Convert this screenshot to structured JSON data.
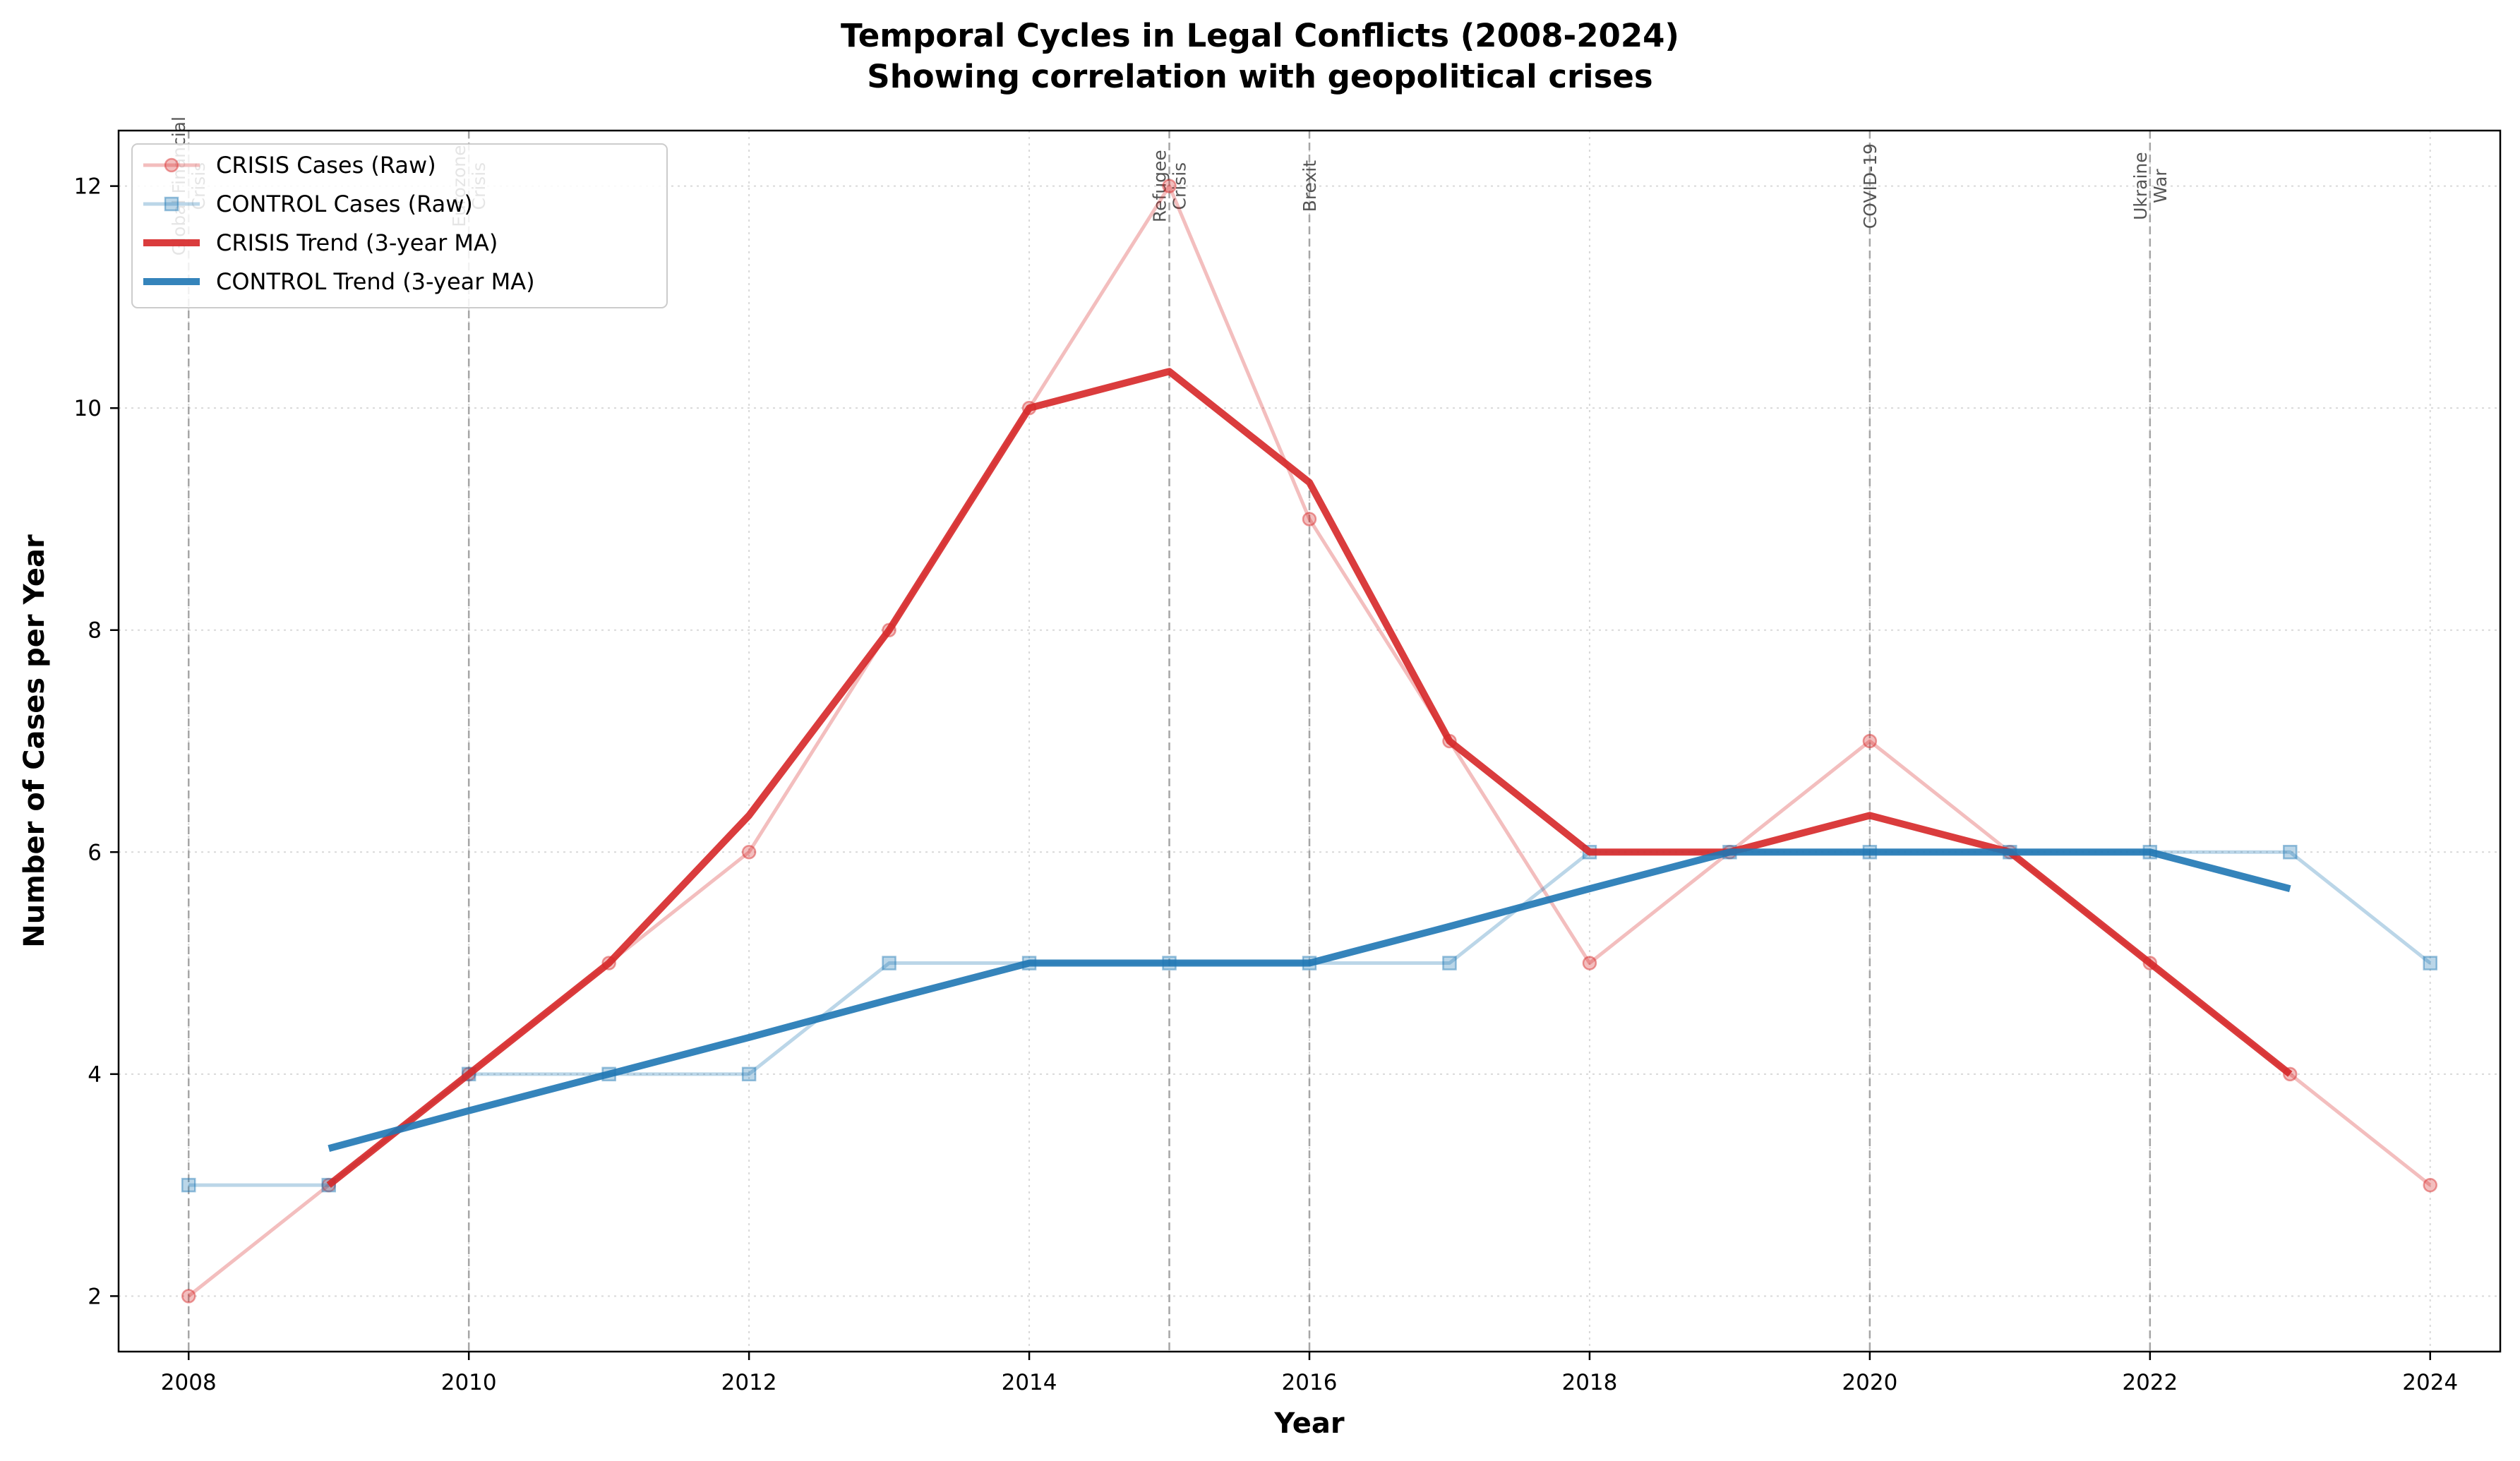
{
  "chart_data": {
    "type": "line",
    "title": "Temporal Cycles in Legal Conflicts (2008-2024)",
    "subtitle": "Showing correlation with geopolitical crises",
    "xlabel": "Year",
    "ylabel": "Number of Cases per Year",
    "xlim": [
      2007.5,
      2024.5
    ],
    "ylim": [
      1.5,
      12.5
    ],
    "x_ticks": [
      2008,
      2010,
      2012,
      2014,
      2016,
      2018,
      2020,
      2022,
      2024
    ],
    "y_ticks": [
      2,
      4,
      6,
      8,
      10,
      12
    ],
    "grid": true,
    "legend_position": "top-left",
    "series": [
      {
        "name": "CRISIS Cases (Raw)",
        "style": "raw",
        "marker": "circle",
        "color": "#d62728",
        "x": [
          2008,
          2009,
          2010,
          2011,
          2012,
          2013,
          2014,
          2015,
          2016,
          2017,
          2018,
          2019,
          2020,
          2021,
          2022,
          2023,
          2024
        ],
        "values": [
          2,
          3,
          4,
          5,
          6,
          8,
          10,
          12,
          9,
          7,
          5,
          6,
          7,
          6,
          5,
          4,
          3
        ]
      },
      {
        "name": "CONTROL Cases (Raw)",
        "style": "raw",
        "marker": "square",
        "color": "#1f77b4",
        "x": [
          2008,
          2009,
          2010,
          2011,
          2012,
          2013,
          2014,
          2015,
          2016,
          2017,
          2018,
          2019,
          2020,
          2021,
          2022,
          2023,
          2024
        ],
        "values": [
          3,
          3,
          4,
          4,
          4,
          5,
          5,
          5,
          5,
          5,
          6,
          6,
          6,
          6,
          6,
          6,
          5
        ]
      },
      {
        "name": "CRISIS Trend (3-year MA)",
        "style": "trend",
        "color": "#d62728",
        "x": [
          2009,
          2010,
          2011,
          2012,
          2013,
          2014,
          2015,
          2016,
          2017,
          2018,
          2019,
          2020,
          2021,
          2022,
          2023
        ],
        "values": [
          3.0,
          4.0,
          5.0,
          6.33,
          8.0,
          10.0,
          10.33,
          9.33,
          7.0,
          6.0,
          6.0,
          6.33,
          6.0,
          5.0,
          4.0
        ]
      },
      {
        "name": "CONTROL Trend (3-year MA)",
        "style": "trend",
        "color": "#1f77b4",
        "x": [
          2009,
          2010,
          2011,
          2012,
          2013,
          2014,
          2015,
          2016,
          2017,
          2018,
          2019,
          2020,
          2021,
          2022,
          2023
        ],
        "values": [
          3.33,
          3.67,
          4.0,
          4.33,
          4.67,
          5.0,
          5.0,
          5.0,
          5.33,
          5.67,
          6.0,
          6.0,
          6.0,
          6.0,
          5.67
        ]
      }
    ],
    "annotations": [
      {
        "x": 2008,
        "lines": [
          "Global Financial",
          "Crisis"
        ]
      },
      {
        "x": 2010,
        "lines": [
          "Eurozone",
          "Crisis"
        ]
      },
      {
        "x": 2015,
        "lines": [
          "Refugee",
          "Crisis"
        ]
      },
      {
        "x": 2016,
        "lines": [
          "Brexit"
        ]
      },
      {
        "x": 2020,
        "lines": [
          "COVID-19"
        ]
      },
      {
        "x": 2022,
        "lines": [
          "Ukraine",
          "War"
        ]
      }
    ]
  }
}
